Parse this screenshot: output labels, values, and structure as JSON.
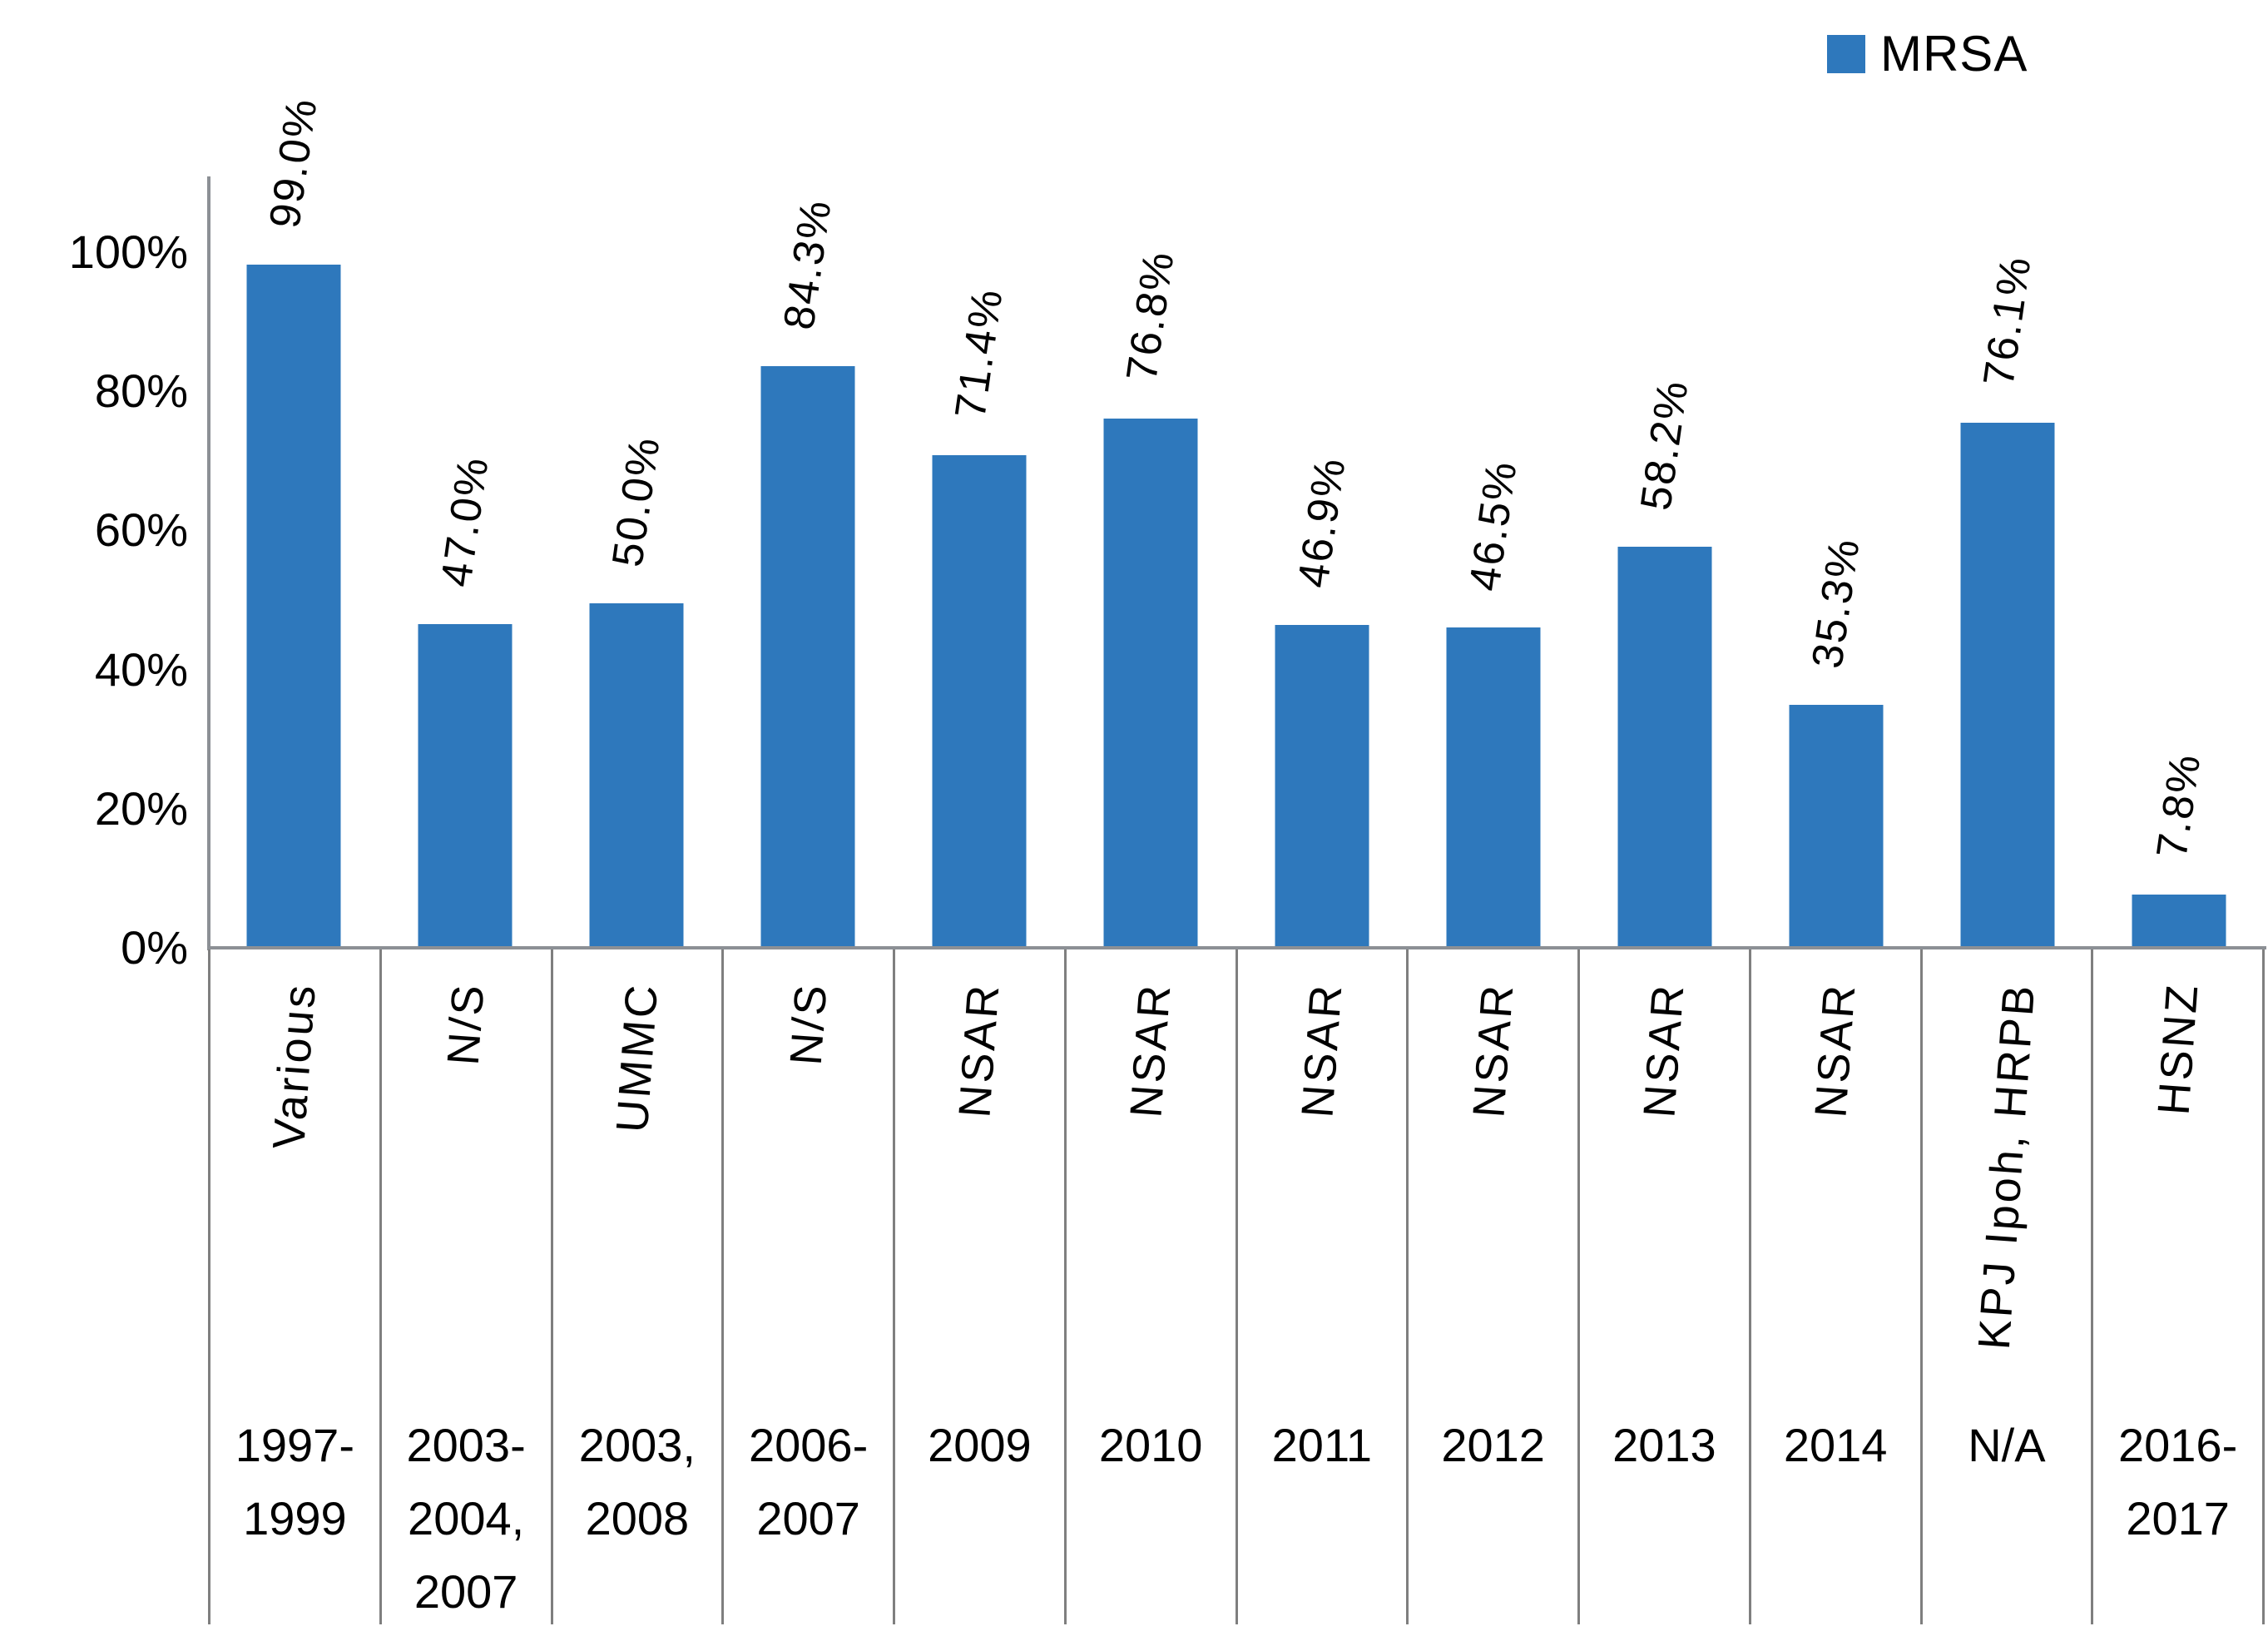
{
  "legend": {
    "label": "MRSA",
    "color": "#2e78bc"
  },
  "y_axis": {
    "ticks": [
      {
        "label": "100%",
        "value": 100
      },
      {
        "label": "80%",
        "value": 80
      },
      {
        "label": "60%",
        "value": 60
      },
      {
        "label": "40%",
        "value": 40
      },
      {
        "label": "20%",
        "value": 20
      },
      {
        "label": "0%",
        "value": 0
      }
    ]
  },
  "chart_data": {
    "type": "bar",
    "title": "",
    "xlabel": "",
    "ylabel": "",
    "ylim": [
      0,
      100
    ],
    "grid": false,
    "legend_position": "top-right",
    "bar_color": "#2e78bc",
    "series": [
      {
        "name": "MRSA",
        "values": [
          99.0,
          47.0,
          50.0,
          84.3,
          71.4,
          76.8,
          46.9,
          46.5,
          58.2,
          35.3,
          76.1,
          7.8
        ]
      }
    ],
    "value_labels": [
      "99.0%",
      "47.0%",
      "50.0%",
      "84.3%",
      "71.4%",
      "76.8%",
      "46.9%",
      "46.5%",
      "58.2%",
      "35.3%",
      "76.1%",
      "7.8%"
    ],
    "categories": [
      {
        "source": "Various",
        "period": "1997-1999",
        "period_lines": [
          "1997-",
          "1999"
        ]
      },
      {
        "source": "N/S",
        "period": "2003-2004, 2007",
        "period_lines": [
          "2003-",
          "2004,",
          "2007"
        ]
      },
      {
        "source": "UMMC",
        "period": "2003, 2008",
        "period_lines": [
          "2003,",
          "2008"
        ]
      },
      {
        "source": "N/S",
        "period": "2006-2007",
        "period_lines": [
          "2006-",
          "2007"
        ]
      },
      {
        "source": "NSAR",
        "period": "2009",
        "period_lines": [
          "2009"
        ]
      },
      {
        "source": "NSAR",
        "period": "2010",
        "period_lines": [
          "2010"
        ]
      },
      {
        "source": "NSAR",
        "period": "2011",
        "period_lines": [
          "2011"
        ]
      },
      {
        "source": "NSAR",
        "period": "2012",
        "period_lines": [
          "2012"
        ]
      },
      {
        "source": "NSAR",
        "period": "2013",
        "period_lines": [
          "2013"
        ]
      },
      {
        "source": "NSAR",
        "period": "2014",
        "period_lines": [
          "2014"
        ]
      },
      {
        "source": "KPJ Ipoh, HRPB",
        "period": "N/A",
        "period_lines": [
          "N/A"
        ]
      },
      {
        "source": "HSNZ",
        "period": "2016-2017",
        "period_lines": [
          "2016-",
          "2017"
        ]
      }
    ]
  }
}
